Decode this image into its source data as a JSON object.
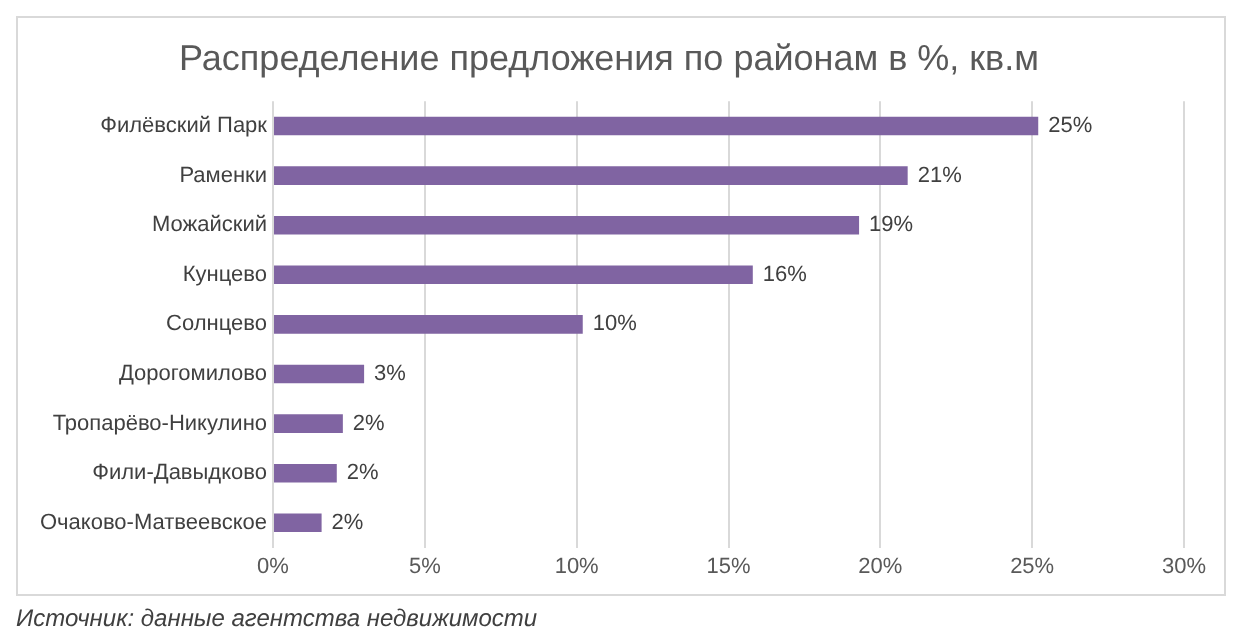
{
  "chart_data": {
    "type": "bar",
    "orientation": "horizontal",
    "title": "Распределение предложения по районам в %, кв.м",
    "categories": [
      "Филёвский Парк",
      "Раменки",
      "Можайский",
      "Кунцево",
      "Солнцево",
      "Дорогомилово",
      "Тропарёво-Никулино",
      "Фили-Давыдково",
      "Очаково-Матвеевское"
    ],
    "values": [
      25.2,
      20.9,
      19.3,
      15.8,
      10.2,
      3.0,
      2.3,
      2.1,
      1.6
    ],
    "value_labels": [
      "25%",
      "21%",
      "19%",
      "16%",
      "10%",
      "3%",
      "2%",
      "2%",
      "2%"
    ],
    "color": "#8064a2",
    "xlim": [
      0,
      30
    ],
    "xticks": [
      {
        "value": 0,
        "label": "0%"
      },
      {
        "value": 5,
        "label": "5%"
      },
      {
        "value": 10,
        "label": "10%"
      },
      {
        "value": 15,
        "label": "15%"
      },
      {
        "value": 20,
        "label": "20%"
      },
      {
        "value": 25,
        "label": "25%"
      },
      {
        "value": 30,
        "label": "30%"
      }
    ],
    "grid": "x",
    "legend": false,
    "annotations": [
      "Источник: данные агентства недвижимости"
    ]
  }
}
